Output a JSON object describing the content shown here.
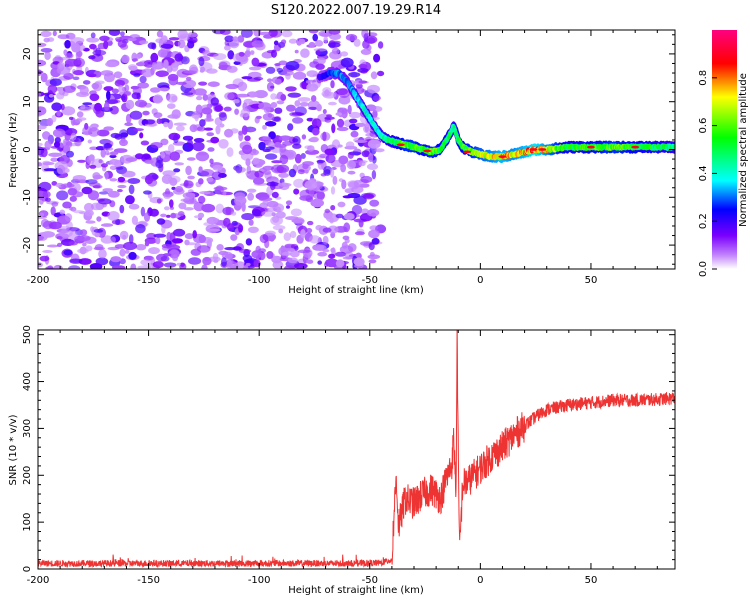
{
  "title": "S120.2022.007.19.29.R14",
  "chart_data": [
    {
      "type": "heatmap",
      "title": "S120.2022.007.19.29.R14",
      "xlabel": "Height of straight line (km)",
      "ylabel": "Frequency (Hz)",
      "xlim": [
        -200,
        88
      ],
      "ylim": [
        -25,
        25
      ],
      "x_ticks": [
        -200,
        -150,
        -100,
        -50,
        0,
        50
      ],
      "y_ticks": [
        -20,
        -10,
        0,
        10,
        20
      ],
      "grid": false,
      "colorbar": {
        "label": "Normalized spectral amplitude",
        "range": [
          0,
          1
        ],
        "ticks": [
          0.0,
          0.2,
          0.4,
          0.6,
          0.8
        ],
        "colors": [
          "#ffffff",
          "#7a00ff",
          "#0000ff",
          "#00ffff",
          "#00ff00",
          "#ffff00",
          "#ff0000",
          "#ff0080"
        ]
      },
      "noise_region": {
        "x_range": [
          -200,
          -45
        ],
        "amplitude_range": [
          0.05,
          0.2
        ]
      },
      "ridge": {
        "x": [
          -73,
          -68,
          -64,
          -60,
          -56,
          -52,
          -48,
          -45,
          -42,
          -38,
          -34,
          -30,
          -26,
          -22,
          -18,
          -14,
          -12,
          -10,
          -8,
          -4,
          0,
          5,
          10,
          15,
          20,
          25,
          30,
          40,
          50,
          60,
          70,
          80,
          88
        ],
        "frequency": [
          15,
          16,
          16,
          14,
          11,
          8,
          5,
          3,
          2,
          1.5,
          1,
          0.5,
          0,
          -0.5,
          0,
          3,
          5,
          2,
          0.5,
          -0.5,
          -1,
          -1.5,
          -1.5,
          -1,
          -0.5,
          0,
          0,
          0.5,
          0.5,
          0.5,
          0.5,
          0.5,
          0.5
        ],
        "amplitude": [
          0.2,
          0.25,
          0.3,
          0.3,
          0.35,
          0.4,
          0.4,
          0.4,
          0.45,
          0.5,
          0.6,
          0.6,
          0.55,
          0.6,
          0.55,
          0.5,
          0.45,
          0.5,
          0.55,
          0.6,
          0.65,
          0.7,
          0.75,
          0.7,
          0.75,
          0.8,
          0.7,
          0.5,
          0.55,
          0.6,
          0.55,
          0.5,
          0.45
        ]
      }
    },
    {
      "type": "line",
      "xlabel": "Height of straight line (km)",
      "ylabel": "SNR (10 * v/v)",
      "xlim": [
        -200,
        88
      ],
      "ylim": [
        0,
        510
      ],
      "x_ticks": [
        -200,
        -150,
        -100,
        -50,
        0,
        50
      ],
      "y_ticks": [
        0,
        100,
        200,
        300,
        400,
        500
      ],
      "grid": false,
      "color": "#ee3333",
      "series": [
        {
          "x": [
            -200,
            -180,
            -160,
            -140,
            -120,
            -100,
            -80,
            -60,
            -45,
            -40,
            -39,
            -38,
            -37,
            -36,
            -34,
            -30,
            -26,
            -22,
            -18,
            -15,
            -13,
            -12,
            -11,
            -10.5,
            -10,
            -9.5,
            -9,
            -8,
            -5,
            0,
            5,
            10,
            15,
            20,
            25,
            30,
            35,
            40,
            50,
            60,
            70,
            80,
            88
          ],
          "values": [
            12,
            12,
            12,
            12,
            12,
            12,
            12,
            12,
            13,
            20,
            120,
            200,
            90,
            110,
            150,
            140,
            160,
            170,
            150,
            200,
            220,
            280,
            160,
            510,
            250,
            40,
            80,
            180,
            190,
            215,
            240,
            260,
            285,
            305,
            325,
            340,
            345,
            350,
            355,
            360,
            360,
            362,
            365
          ]
        }
      ]
    }
  ]
}
